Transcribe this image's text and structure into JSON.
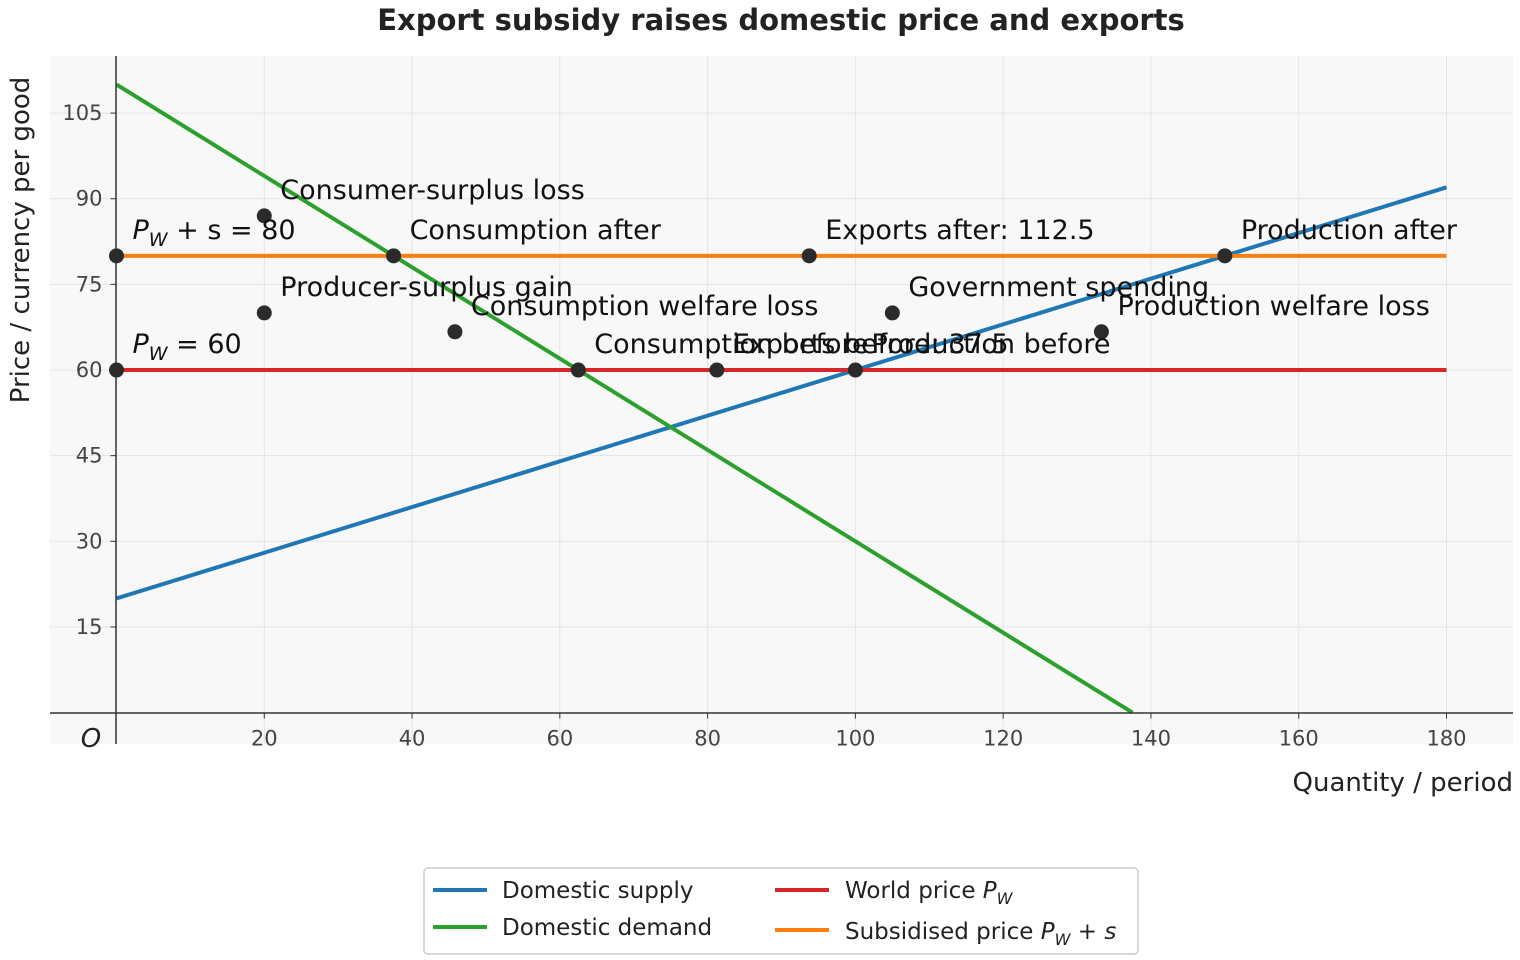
{
  "chart_data": {
    "type": "line",
    "title": "Export subsidy raises domestic price and exports",
    "xlabel": "Quantity / period",
    "ylabel": "Price / currency per good",
    "origin_label": "O",
    "xlim": [
      -9,
      189
    ],
    "ylim": [
      -5.5,
      115
    ],
    "x_ticks": [
      20,
      40,
      60,
      80,
      100,
      120,
      140,
      160,
      180
    ],
    "y_ticks": [
      15,
      30,
      45,
      60,
      75,
      90,
      105
    ],
    "grid": true,
    "legend_position": "bottom-center",
    "series": [
      {
        "name": "Domestic supply",
        "key": "supply",
        "color": "#1f77b4",
        "x": [
          0,
          180
        ],
        "y": [
          20,
          92
        ]
      },
      {
        "name": "Domestic demand",
        "key": "demand",
        "color": "#2ca02c",
        "x": [
          0,
          137.5
        ],
        "y": [
          110,
          0
        ]
      },
      {
        "name": "World price",
        "key": "world",
        "color": "#d62728",
        "x": [
          0,
          180
        ],
        "y": [
          60,
          60
        ]
      },
      {
        "name": "Subsidised price",
        "key": "subsidised",
        "color": "#ff7f0e",
        "x": [
          0,
          180
        ],
        "y": [
          80,
          80
        ]
      }
    ],
    "legend": {
      "supply": "Domestic supply",
      "demand": "Domestic demand",
      "world": "World price ",
      "subsidised": "Subsidised price "
    },
    "price_labels": {
      "subsidised": {
        "x": 0,
        "y": 80,
        "prefix": "P",
        "sub": "W",
        "suffix": " + s = 80"
      },
      "world": {
        "x": 0,
        "y": 60,
        "prefix": "P",
        "sub": "W",
        "suffix": " = 60"
      }
    },
    "points": [
      {
        "x": 0,
        "y": 80
      },
      {
        "x": 0,
        "y": 60
      },
      {
        "x": 20,
        "y": 87,
        "label": "Consumer-surplus loss"
      },
      {
        "x": 37.5,
        "y": 80,
        "label": "Consumption after"
      },
      {
        "x": 93.75,
        "y": 80,
        "label": "Exports after: 112.5"
      },
      {
        "x": 150,
        "y": 80,
        "label": "Production after"
      },
      {
        "x": 20,
        "y": 70,
        "label": "Producer-surplus gain"
      },
      {
        "x": 45.8,
        "y": 66.7,
        "label": "Consumption welfare loss"
      },
      {
        "x": 105,
        "y": 70,
        "label": "Government spending"
      },
      {
        "x": 133.3,
        "y": 66.7,
        "label": "Production welfare loss"
      },
      {
        "x": 62.5,
        "y": 60,
        "label": "Consumption before"
      },
      {
        "x": 81.25,
        "y": 60,
        "label": "Exports before: 37.5"
      },
      {
        "x": 100,
        "y": 60,
        "label": "Production before"
      }
    ]
  }
}
